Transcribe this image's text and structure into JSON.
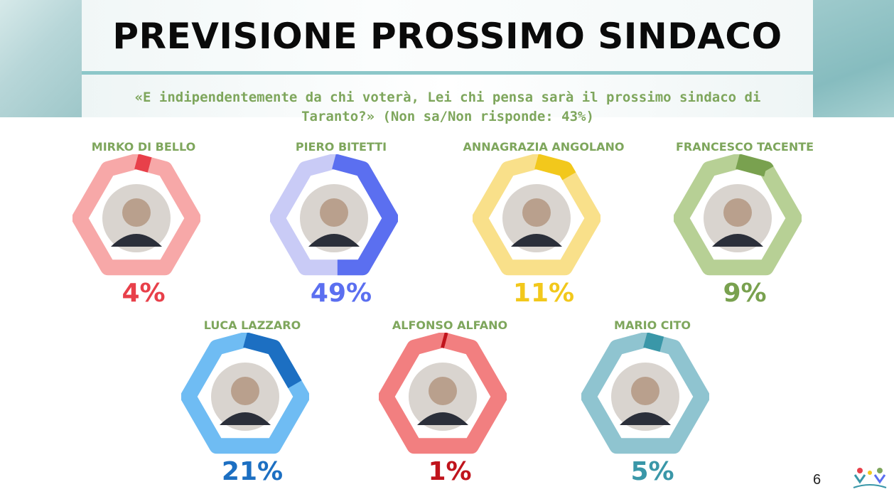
{
  "header": {
    "title": "PREVISIONE PROSSIMO SINDACO",
    "subtitle_line1": "«E indipendentemente da chi voterà, Lei chi pensa sarà il prossimo sindaco di",
    "subtitle_line2": "Taranto?» (Non sa/Non risponde: 43%)"
  },
  "chart_data": {
    "type": "donut",
    "title": "PREVISIONE PROSSIMO SINDACO",
    "series": [
      {
        "name": "MIRKO DI BELLO",
        "value": 4,
        "label": "4%",
        "color": "#e8404a",
        "track": "#f7a8a8"
      },
      {
        "name": "PIERO BITETTI",
        "value": 49,
        "label": "49%",
        "color": "#5b6ff0",
        "track": "#c9cbf6"
      },
      {
        "name": "ANNAGRAZIA ANGOLANO",
        "value": 11,
        "label": "11%",
        "color": "#f2c81c",
        "track": "#f9e08a"
      },
      {
        "name": "FRANCESCO TACENTE",
        "value": 9,
        "label": "9%",
        "color": "#79a14f",
        "track": "#b7d095"
      },
      {
        "name": "LUCA LAZZARO",
        "value": 21,
        "label": "21%",
        "color": "#1c6fc2",
        "track": "#6fbcf3"
      },
      {
        "name": "ALFONSO ALFANO",
        "value": 1,
        "label": "1%",
        "color": "#c0141c",
        "track": "#f27f80"
      },
      {
        "name": "MARIO CITO",
        "value": 5,
        "label": "5%",
        "color": "#3a97a8",
        "track": "#8fc4d0"
      }
    ]
  },
  "footer": {
    "page_number": "6"
  }
}
